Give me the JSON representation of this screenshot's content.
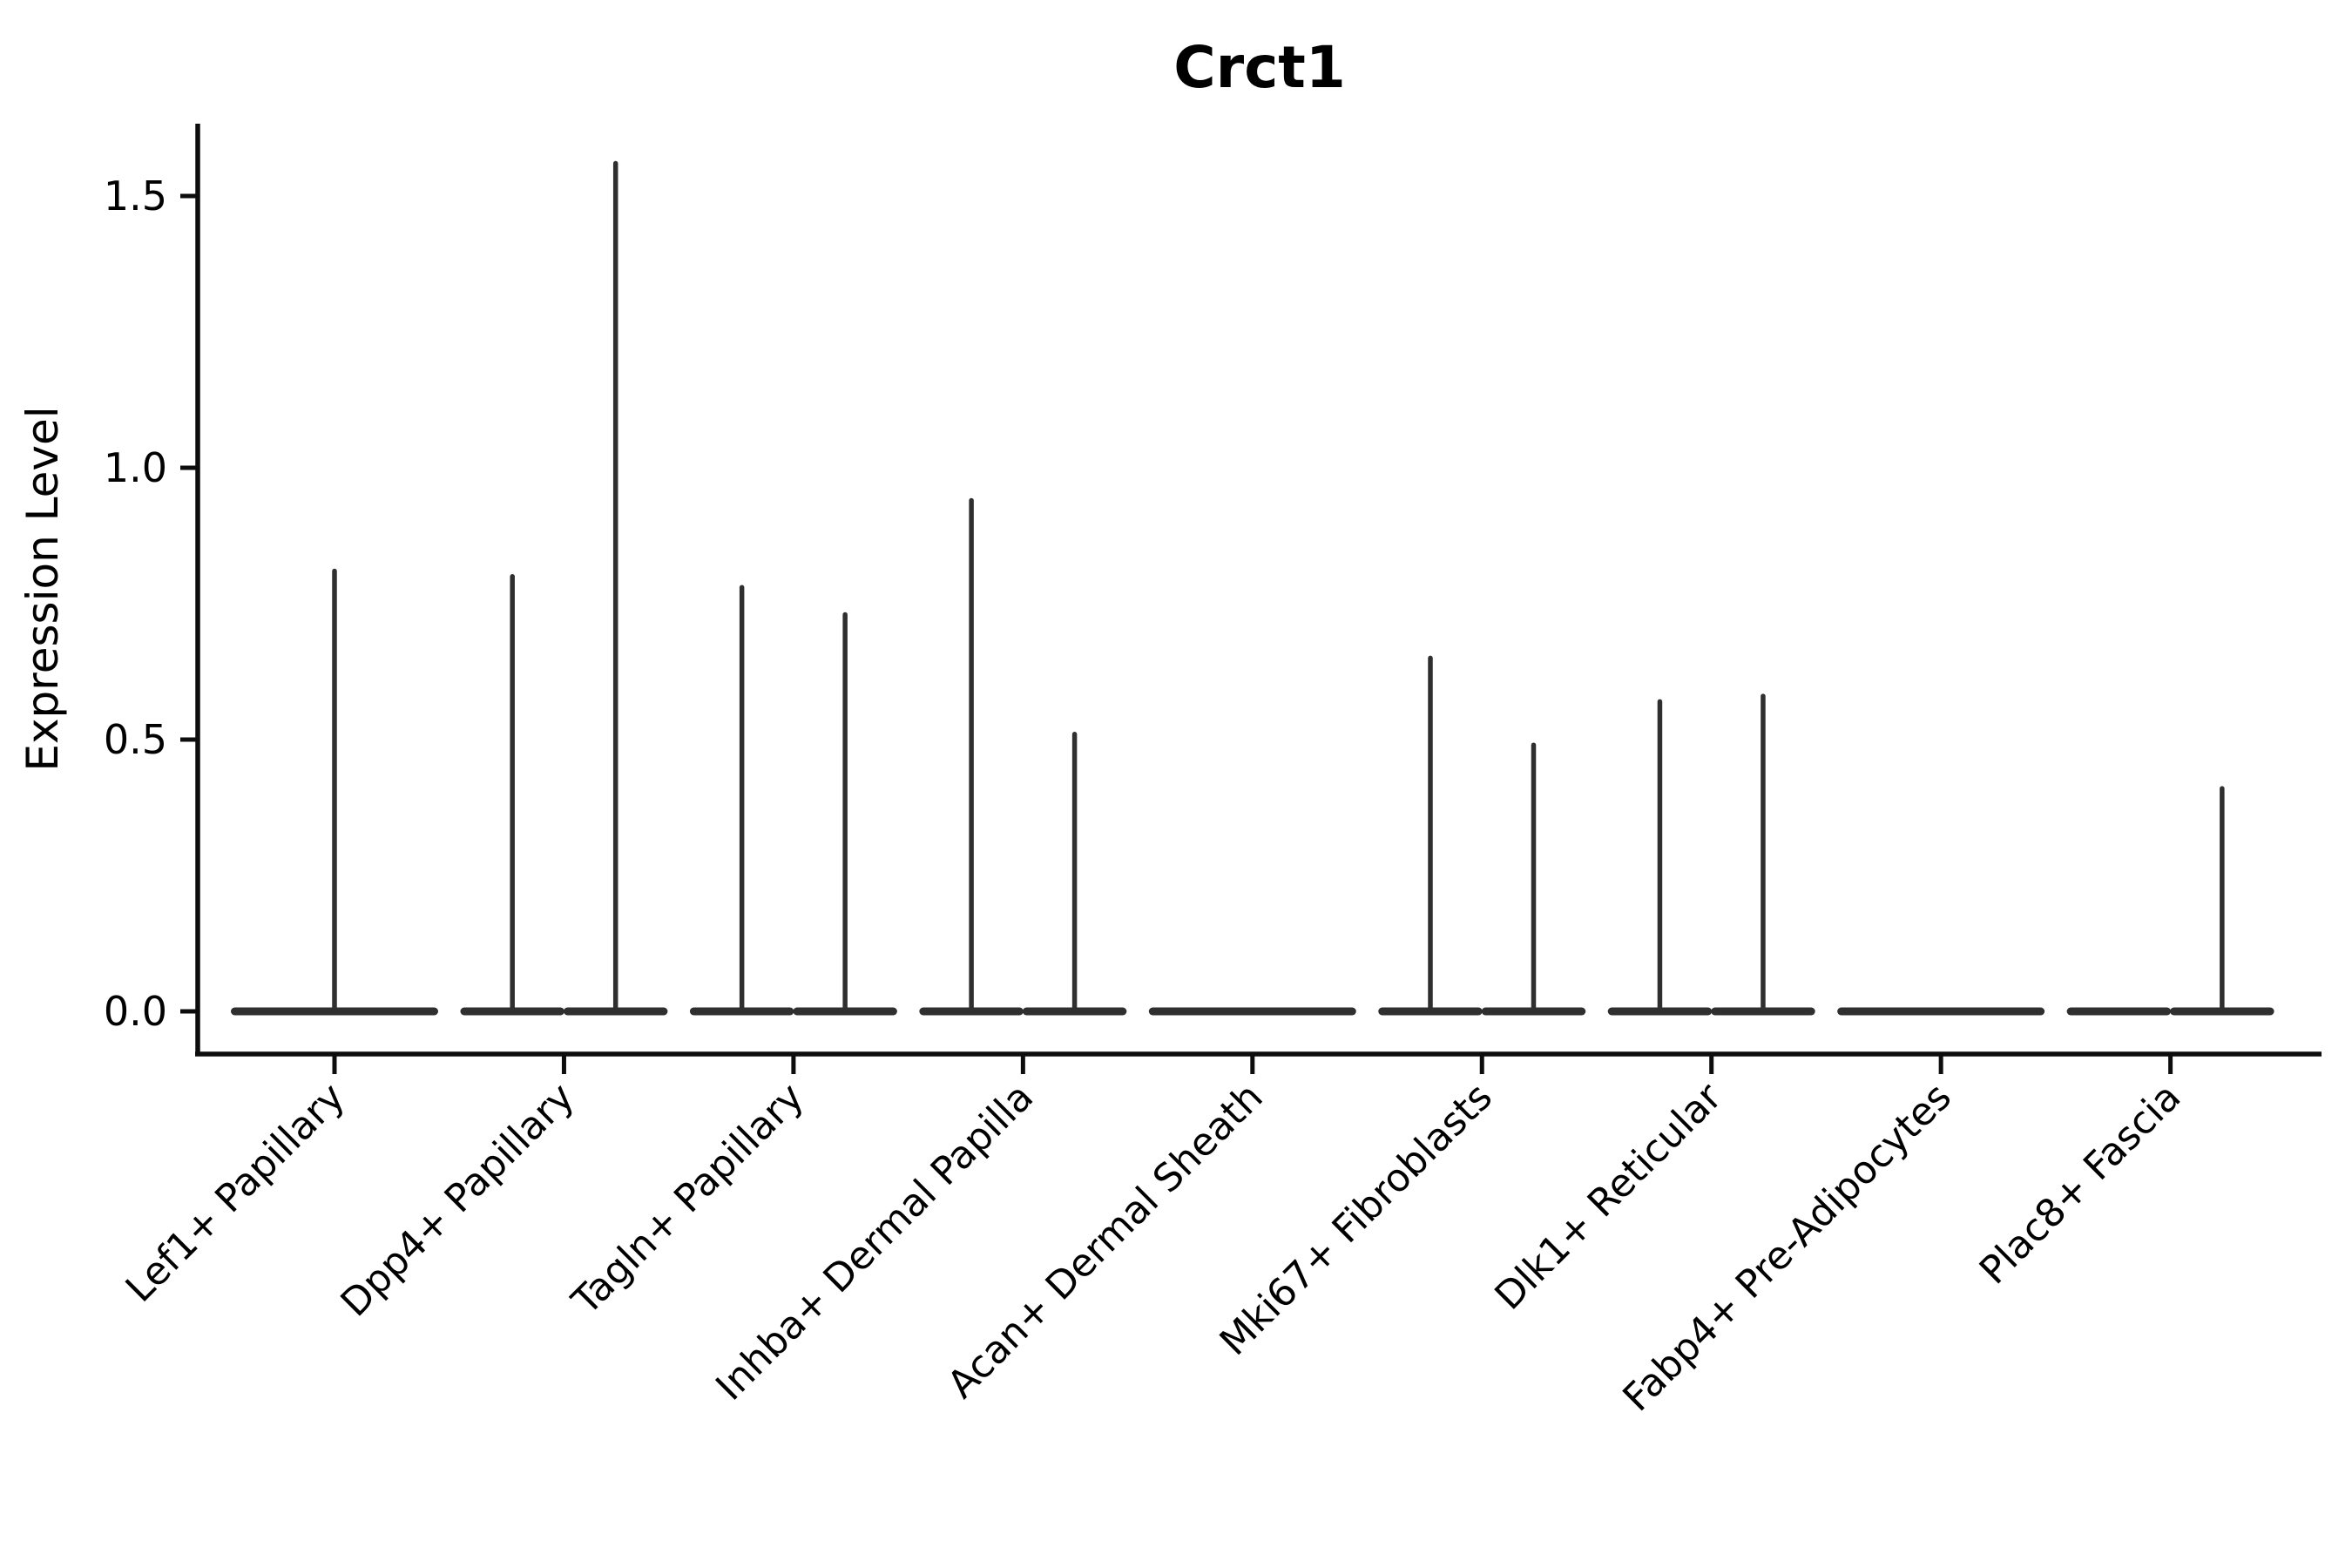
{
  "chart_data": {
    "type": "violin",
    "title": "Crct1",
    "ylabel": "Expression Level",
    "xlabel": "",
    "ylim": [
      -0.08,
      1.63
    ],
    "ytick_labels": [
      "0.0",
      "0.5",
      "1.0",
      "1.5"
    ],
    "ytick_values": [
      0.0,
      0.5,
      1.0,
      1.5
    ],
    "grid": false,
    "legend": null,
    "background_color": "#ffffff",
    "axis_color": "#0d0d0d",
    "violin_color": "#2f2f2f",
    "categories": [
      "Lef1+ Papillary",
      "Dpp4+ Papillary",
      "Tagln+ Papillary",
      "Inhba+ Dermal Papilla",
      "Acan+ Dermal Sheath",
      "Mki67+ Fibroblasts",
      "Dlk1+ Reticular",
      "Fabp4+ Pre-Adipocytes",
      "Plac8+ Fascia"
    ],
    "violins": [
      {
        "category": "Lef1+ Papillary",
        "parts": [
          {
            "slot": "full",
            "max": 0.81
          }
        ]
      },
      {
        "category": "Dpp4+ Papillary",
        "parts": [
          {
            "slot": "left",
            "max": 0.8
          },
          {
            "slot": "right",
            "max": 1.56
          }
        ]
      },
      {
        "category": "Tagln+ Papillary",
        "parts": [
          {
            "slot": "left",
            "max": 0.78
          },
          {
            "slot": "right",
            "max": 0.73
          }
        ]
      },
      {
        "category": "Inhba+ Dermal Papilla",
        "parts": [
          {
            "slot": "left",
            "max": 0.94
          },
          {
            "slot": "right",
            "max": 0.51
          }
        ]
      },
      {
        "category": "Acan+ Dermal Sheath",
        "parts": [
          {
            "slot": "full",
            "max": 0.0
          }
        ]
      },
      {
        "category": "Mki67+ Fibroblasts",
        "parts": [
          {
            "slot": "left",
            "max": 0.65
          },
          {
            "slot": "right",
            "max": 0.49
          }
        ]
      },
      {
        "category": "Dlk1+ Reticular",
        "parts": [
          {
            "slot": "left",
            "max": 0.57
          },
          {
            "slot": "right",
            "max": 0.58
          }
        ]
      },
      {
        "category": "Fabp4+ Pre-Adipocytes",
        "parts": [
          {
            "slot": "full",
            "max": 0.0
          }
        ]
      },
      {
        "category": "Plac8+ Fascia",
        "parts": [
          {
            "slot": "left",
            "max": 0.0
          },
          {
            "slot": "right",
            "max": 0.41
          }
        ]
      }
    ]
  }
}
